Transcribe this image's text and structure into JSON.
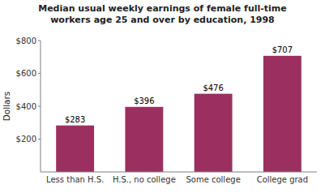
{
  "chart_data": {
    "type": "bar",
    "title": "Median usual weekly earnings of female full-time\nworkers age 25 and over by education, 1998",
    "ylabel": "Dollars",
    "categories": [
      "Less than H.S.",
      "H.S., no college",
      "Some college",
      "College grad"
    ],
    "values": [
      283,
      396,
      476,
      707
    ],
    "value_labels": [
      "$283",
      "$396",
      "$476",
      "$707"
    ],
    "data_labels": true,
    "color": "#9b3060",
    "ylim": [
      0,
      800
    ],
    "yticks": [
      {
        "value": 200,
        "label": "$200"
      },
      {
        "value": 400,
        "label": "$400"
      },
      {
        "value": 600,
        "label": "$600"
      },
      {
        "value": 800,
        "label": "$800"
      }
    ],
    "grid": false
  }
}
